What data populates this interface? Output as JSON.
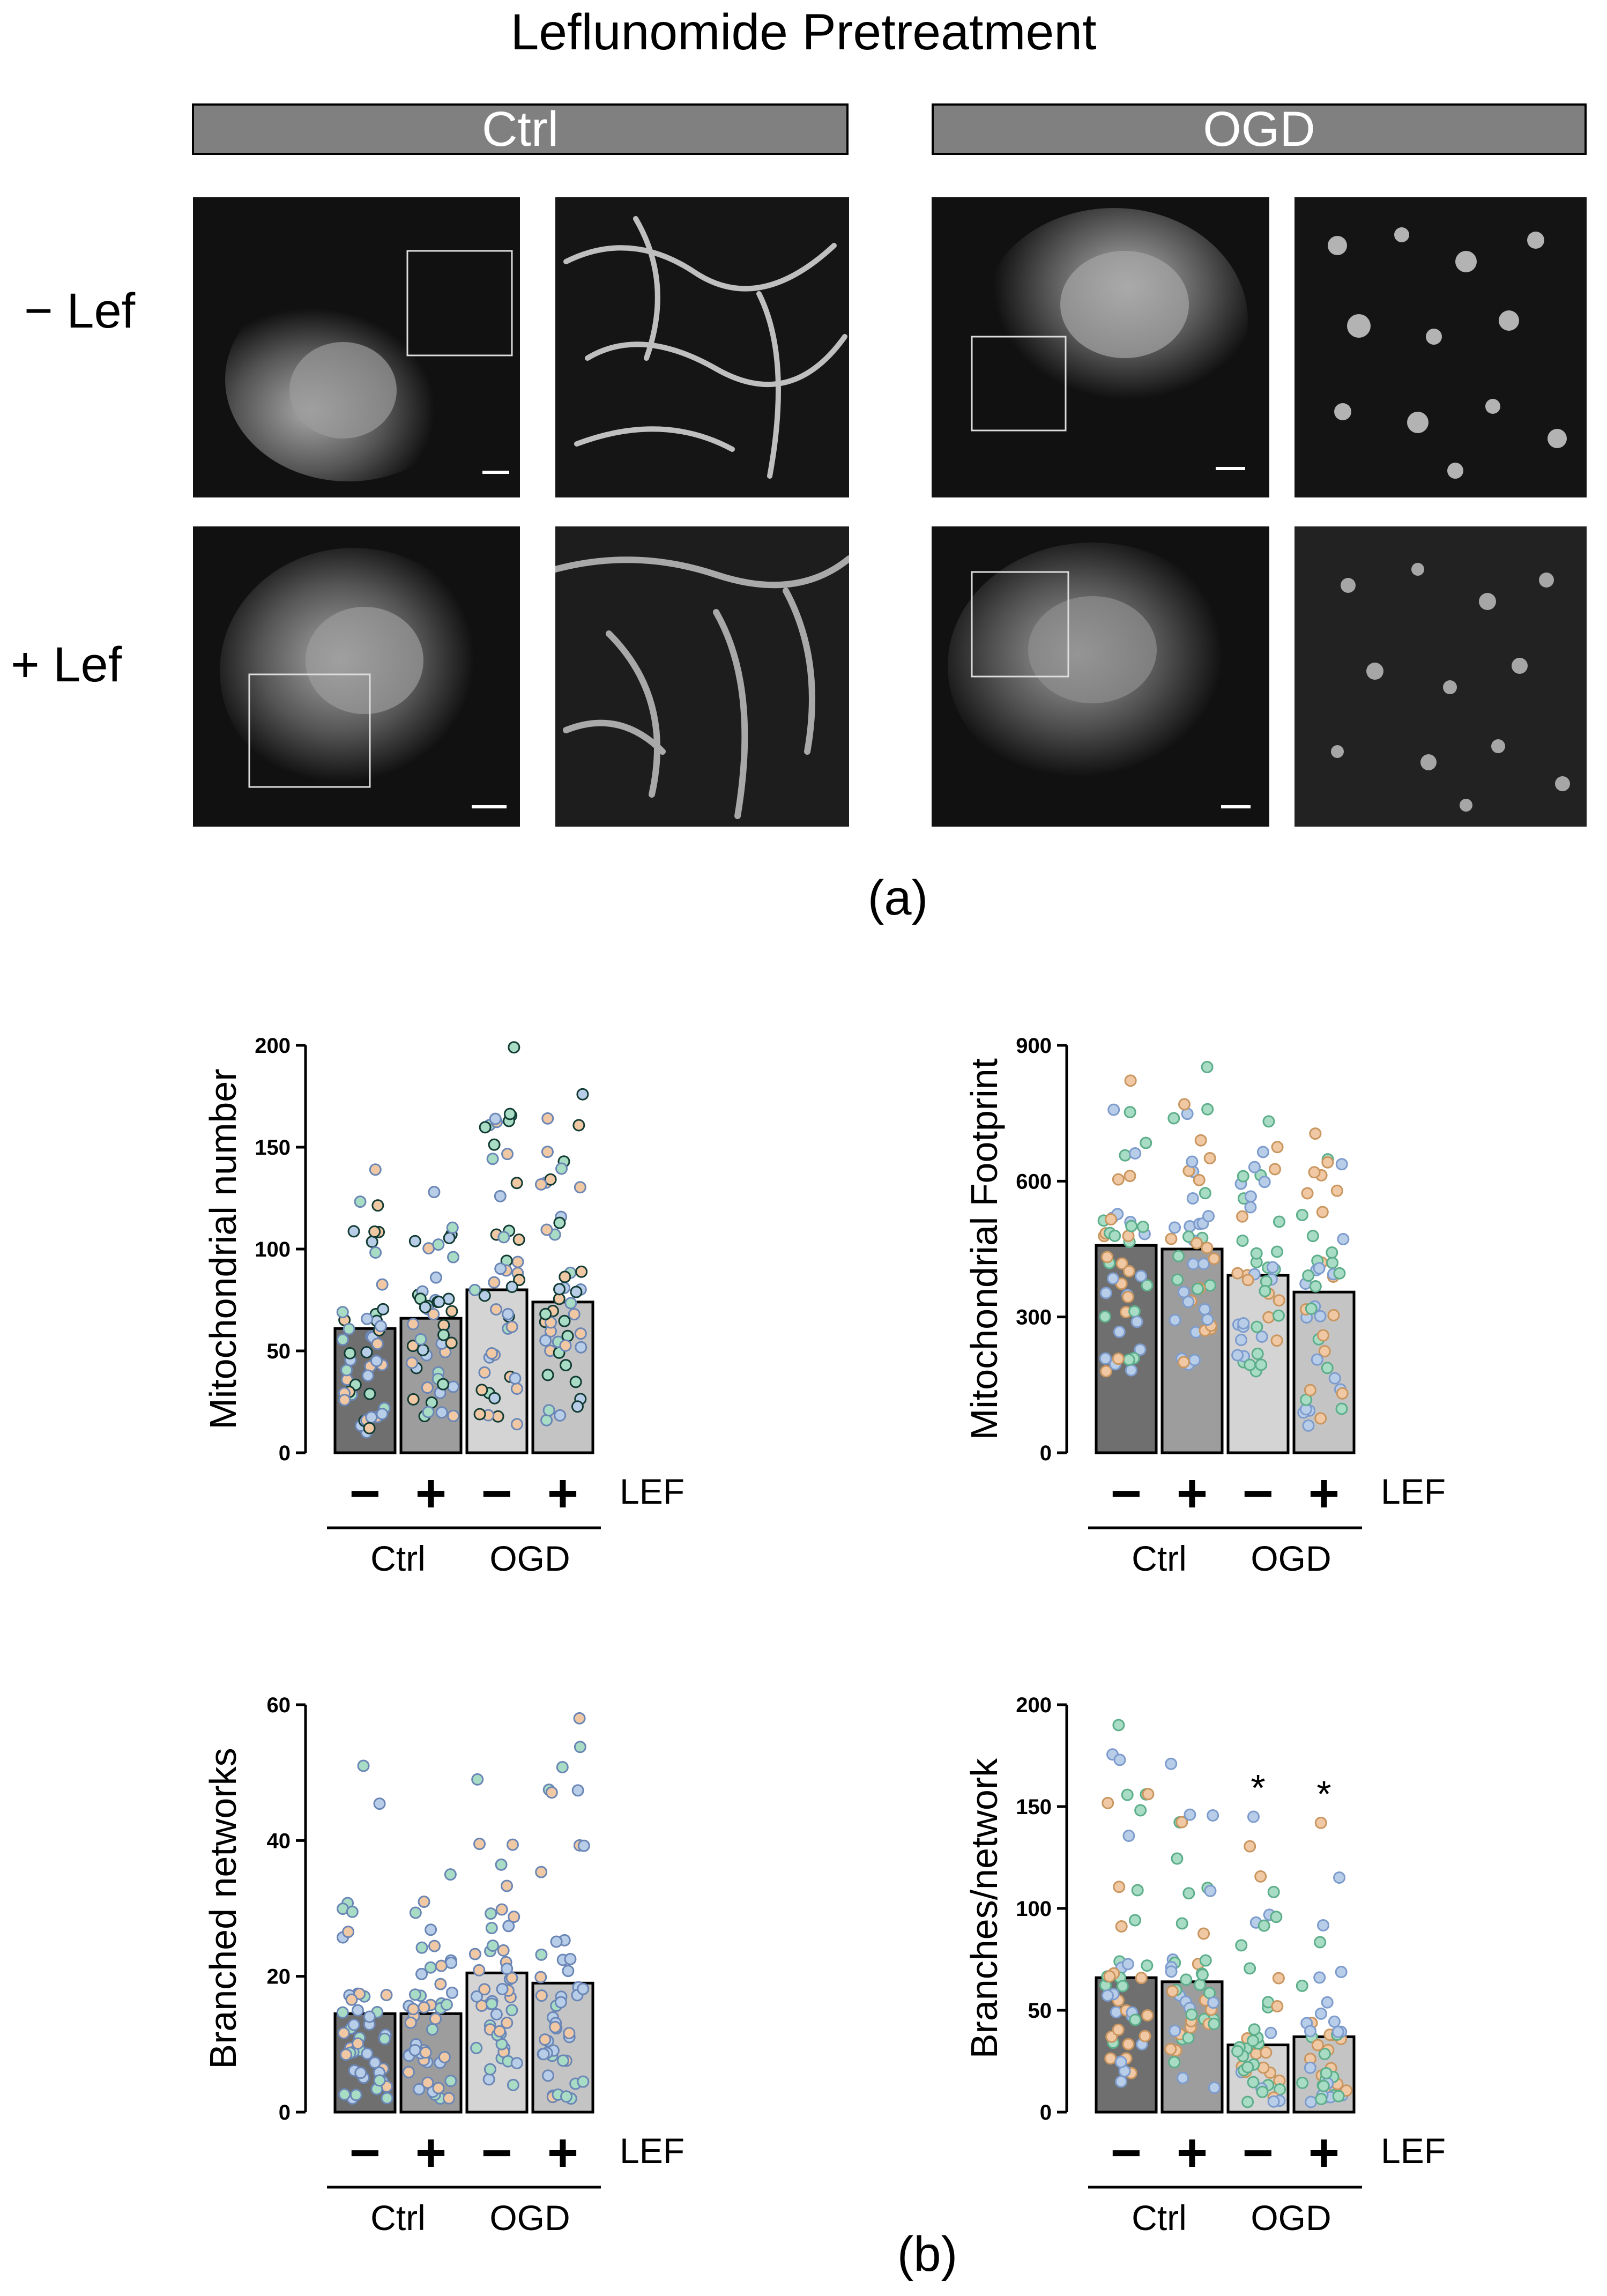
{
  "figure": {
    "title": "Leflunomide Pretreatment",
    "group_headers": [
      "Ctrl",
      "OGD"
    ],
    "row_labels": [
      "− Lef",
      "+ Lef"
    ],
    "panel_labels": [
      "(a)",
      "(b)"
    ],
    "colors": {
      "header_bar": "#808080",
      "ctrl_minus": "#6f6f6f",
      "ctrl_plus": "#9d9d9d",
      "ogd_minus": "#d4d4d4",
      "ogd_plus": "#c4c4c4",
      "dot_blue": "#b8cde8",
      "dot_orange": "#f0c8a4",
      "dot_green": "#a8dcc4",
      "dot_dark": "#123b33"
    }
  },
  "chart_data": [
    {
      "type": "bar",
      "ylabel": "Mitochondrial number",
      "ylim": [
        0,
        200
      ],
      "yticks": [
        0,
        50,
        100,
        150,
        200
      ],
      "categories": [
        "−",
        "+",
        "−",
        "+"
      ],
      "treatment_label": "LEF",
      "groups": [
        "Ctrl",
        "OGD"
      ],
      "values": [
        61,
        66,
        80,
        74
      ],
      "dot_max": [
        139,
        128,
        199,
        176
      ],
      "dot_min": [
        10,
        18,
        14,
        16
      ],
      "dot_outline": "dark",
      "significance": [
        "",
        "",
        "",
        ""
      ]
    },
    {
      "type": "bar",
      "ylabel": "Mitochondrial Footprint",
      "ylim": [
        0,
        900
      ],
      "yticks": [
        0,
        300,
        600,
        900
      ],
      "categories": [
        "−",
        "+",
        "−",
        "+"
      ],
      "treatment_label": "LEF",
      "groups": [
        "Ctrl",
        "OGD"
      ],
      "values": [
        458,
        450,
        392,
        355
      ],
      "dot_max": [
        822,
        852,
        732,
        705
      ],
      "dot_min": [
        180,
        195,
        180,
        60
      ],
      "dot_outline": "light",
      "significance": [
        "",
        "",
        "",
        ""
      ]
    },
    {
      "type": "bar",
      "ylabel": "Branched networks",
      "ylim": [
        0,
        60
      ],
      "yticks": [
        0,
        20,
        40,
        60
      ],
      "categories": [
        "−",
        "+",
        "−",
        "+"
      ],
      "treatment_label": "LEF",
      "groups": [
        "Ctrl",
        "OGD"
      ],
      "values": [
        14.5,
        14.5,
        20.5,
        19
      ],
      "dot_max": [
        51,
        35,
        49,
        58
      ],
      "dot_min": [
        2,
        2,
        4,
        2
      ],
      "dot_outline": "blue",
      "significance": [
        "",
        "",
        "",
        ""
      ]
    },
    {
      "type": "bar",
      "ylabel": "Branches/network",
      "ylim": [
        0,
        200
      ],
      "yticks": [
        0,
        50,
        100,
        150,
        200
      ],
      "categories": [
        "−",
        "+",
        "−",
        "+"
      ],
      "treatment_label": "LEF",
      "groups": [
        "Ctrl",
        "OGD"
      ],
      "values": [
        66,
        64,
        33,
        37
      ],
      "dot_max": [
        190,
        171,
        145,
        142
      ],
      "dot_min": [
        15,
        12,
        5,
        5
      ],
      "dot_outline": "light",
      "significance": [
        "",
        "",
        "*",
        "*"
      ]
    }
  ]
}
